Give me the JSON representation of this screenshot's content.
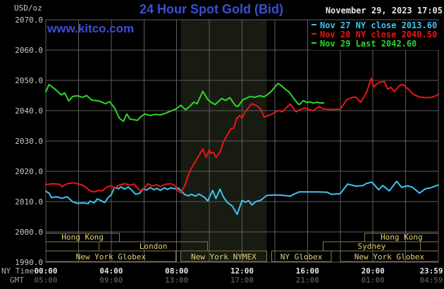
{
  "header": {
    "units_label": "USD/oz",
    "title": "24 Hour Spot Gold (Bid)",
    "datetime": "November 29, 2023 17:05",
    "watermark": "www.kitco.com"
  },
  "legend": {
    "rows": [
      {
        "key": "nov27",
        "text": "Nov 27 NY close 2013.60"
      },
      {
        "key": "nov28",
        "text": "Nov 28 NY close 2040.50"
      },
      {
        "key": "nov29",
        "text": "Nov 29 Last 2042.60"
      }
    ]
  },
  "axes": {
    "x_label_primary": "NY Time",
    "x_label_secondary": "GMT",
    "ny_times": [
      "00:00",
      "04:00",
      "08:00",
      "12:00",
      "16:00",
      "20:00",
      "23:59"
    ],
    "gmt_times": [
      "05:00",
      "09:00",
      "13:00",
      "17:00",
      "21:00",
      "01:00",
      "04:59"
    ],
    "y_ticks": [
      "2070.0",
      "2060.0",
      "2050.0",
      "2040.0",
      "2030.0",
      "2020.0",
      "2010.0",
      "2000.0",
      "1990.0"
    ],
    "y_min": 1990,
    "y_max": 2070
  },
  "sessions": [
    {
      "label": "Hong Kong",
      "row": 0,
      "h1": 0,
      "h2": 4.5
    },
    {
      "label": "Hong Kong",
      "row": 0,
      "h1": 19.5,
      "h2": 24
    },
    {
      "label": "London",
      "row": 1,
      "h1": 3.25,
      "h2": 9.9
    },
    {
      "label": "Sydney",
      "row": 1,
      "h1": 16.95,
      "h2": 22.9
    },
    {
      "label": "",
      "row": 1,
      "h1": 22.9,
      "h2": 24
    },
    {
      "label": "New York Globex",
      "row": 2,
      "h1": 0,
      "h2": 7.95
    },
    {
      "label": "New York NYMEX",
      "row": 2,
      "h1": 8.25,
      "h2": 13.5
    },
    {
      "label": "NY Globex",
      "row": 2,
      "h1": 13.8,
      "h2": 17.45
    },
    {
      "label": "New York Globex",
      "row": 2,
      "h1": 18.0,
      "h2": 24
    }
  ],
  "colors": {
    "background": "#000000",
    "grid": "#5e5e5e",
    "band": "#181b11",
    "title_blue": "#3c4ed2",
    "text_light": "#e4e4e4",
    "text_gray": "#b0b0b0",
    "tick_gray": "#c8c8c8",
    "gmt_dim": "#4c4c4c",
    "gmt_label": "#9a9a9a",
    "session_text": "#e2cf7d",
    "session_border": "#837b44",
    "nov27": "#3ec3f0",
    "nov28": "#ec1515",
    "nov29": "#2bd62b"
  },
  "chart_data": {
    "type": "line",
    "title": "24 Hour Spot Gold (Bid)",
    "ylabel": "USD/oz",
    "ylim": [
      1990,
      2070
    ],
    "x_axis_hours_ny": [
      0,
      24
    ],
    "grid": true,
    "legend_position": "top-right",
    "highlight_band_hours": [
      8.25,
      13.5
    ],
    "series": [
      {
        "key": "nov27",
        "name": "Nov 27 NY close",
        "close": 2013.6,
        "points": [
          [
            0,
            2013.4
          ],
          [
            0.2,
            2012.8
          ],
          [
            0.35,
            2011.3
          ],
          [
            0.65,
            2011.6
          ],
          [
            1.0,
            2011.1
          ],
          [
            1.3,
            2011.6
          ],
          [
            1.65,
            2009.9
          ],
          [
            1.95,
            2009.4
          ],
          [
            2.3,
            2009.6
          ],
          [
            2.6,
            2009.3
          ],
          [
            2.7,
            2010.2
          ],
          [
            2.95,
            2009.6
          ],
          [
            3.15,
            2010.9
          ],
          [
            3.35,
            2010.4
          ],
          [
            3.6,
            2009.7
          ],
          [
            3.8,
            2011.3
          ],
          [
            4.0,
            2012.2
          ],
          [
            4.2,
            2014.7
          ],
          [
            4.45,
            2014.2
          ],
          [
            4.6,
            2014.9
          ],
          [
            4.8,
            2014.1
          ],
          [
            5.05,
            2014.8
          ],
          [
            5.25,
            2013.8
          ],
          [
            5.5,
            2012.4
          ],
          [
            5.75,
            2012.8
          ],
          [
            5.95,
            2014.3
          ],
          [
            6.15,
            2013.8
          ],
          [
            6.4,
            2014.6
          ],
          [
            6.6,
            2013.9
          ],
          [
            6.8,
            2014.4
          ],
          [
            7.0,
            2013.7
          ],
          [
            7.25,
            2014.5
          ],
          [
            7.45,
            2014.0
          ],
          [
            7.65,
            2014.6
          ],
          [
            7.9,
            2014.2
          ],
          [
            8.1,
            2014.5
          ],
          [
            8.3,
            2013.4
          ],
          [
            8.5,
            2012.3
          ],
          [
            8.7,
            2011.9
          ],
          [
            8.9,
            2012.4
          ],
          [
            9.15,
            2011.8
          ],
          [
            9.35,
            2012.5
          ],
          [
            9.55,
            2011.9
          ],
          [
            9.7,
            2011.4
          ],
          [
            9.9,
            2010.2
          ],
          [
            10.2,
            2013.7
          ],
          [
            10.4,
            2011.0
          ],
          [
            10.65,
            2014.1
          ],
          [
            10.85,
            2011.6
          ],
          [
            11.1,
            2009.7
          ],
          [
            11.4,
            2008.5
          ],
          [
            11.7,
            2005.8
          ],
          [
            12.0,
            2010.4
          ],
          [
            12.2,
            2009.8
          ],
          [
            12.4,
            2010.3
          ],
          [
            12.6,
            2008.9
          ],
          [
            12.85,
            2010.0
          ],
          [
            13.15,
            2010.5
          ],
          [
            13.5,
            2012.0
          ],
          [
            14.0,
            2012.2
          ],
          [
            14.45,
            2012.1
          ],
          [
            14.95,
            2011.8
          ],
          [
            15.15,
            2012.4
          ],
          [
            15.5,
            2013.2
          ],
          [
            16.6,
            2013.2
          ],
          [
            17.2,
            2013.1
          ],
          [
            17.45,
            2012.4
          ],
          [
            18.0,
            2012.6
          ],
          [
            18.45,
            2015.8
          ],
          [
            18.95,
            2015.1
          ],
          [
            19.4,
            2015.3
          ],
          [
            19.6,
            2016.0
          ],
          [
            19.95,
            2016.4
          ],
          [
            20.35,
            2013.9
          ],
          [
            20.6,
            2015.3
          ],
          [
            21.0,
            2013.5
          ],
          [
            21.45,
            2016.7
          ],
          [
            21.75,
            2014.7
          ],
          [
            22.1,
            2015.2
          ],
          [
            22.4,
            2014.8
          ],
          [
            22.85,
            2012.8
          ],
          [
            23.2,
            2014.2
          ],
          [
            23.5,
            2014.5
          ],
          [
            23.8,
            2015.1
          ],
          [
            24,
            2015.5
          ]
        ]
      },
      {
        "key": "nov28",
        "name": "Nov 28 NY close",
        "close": 2040.5,
        "points": [
          [
            0,
            2015.6
          ],
          [
            0.45,
            2015.9
          ],
          [
            0.85,
            2015.7
          ],
          [
            1.0,
            2014.9
          ],
          [
            1.3,
            2015.9
          ],
          [
            1.7,
            2016.2
          ],
          [
            1.95,
            2015.9
          ],
          [
            2.3,
            2015.3
          ],
          [
            2.45,
            2014.7
          ],
          [
            2.7,
            2013.6
          ],
          [
            2.95,
            2013.2
          ],
          [
            3.25,
            2013.7
          ],
          [
            3.45,
            2013.5
          ],
          [
            3.75,
            2014.9
          ],
          [
            4.0,
            2015.2
          ],
          [
            4.2,
            2014.4
          ],
          [
            4.5,
            2015.5
          ],
          [
            4.85,
            2015.9
          ],
          [
            5.15,
            2015.4
          ],
          [
            5.4,
            2015.8
          ],
          [
            5.7,
            2013.9
          ],
          [
            5.9,
            2013.7
          ],
          [
            6.25,
            2015.9
          ],
          [
            6.5,
            2015.1
          ],
          [
            6.75,
            2015.6
          ],
          [
            7.0,
            2015.0
          ],
          [
            7.3,
            2015.7
          ],
          [
            7.65,
            2015.9
          ],
          [
            7.9,
            2015.3
          ],
          [
            8.1,
            2013.5
          ],
          [
            8.25,
            2012.9
          ],
          [
            8.4,
            2014.2
          ],
          [
            8.55,
            2016.0
          ],
          [
            8.7,
            2018.5
          ],
          [
            8.9,
            2021.0
          ],
          [
            9.25,
            2024.2
          ],
          [
            9.5,
            2026.5
          ],
          [
            9.6,
            2027.4
          ],
          [
            9.8,
            2024.6
          ],
          [
            10.0,
            2027.1
          ],
          [
            10.1,
            2025.9
          ],
          [
            10.25,
            2026.3
          ],
          [
            10.4,
            2024.6
          ],
          [
            10.65,
            2026.3
          ],
          [
            10.85,
            2029.6
          ],
          [
            11.05,
            2031.6
          ],
          [
            11.3,
            2033.9
          ],
          [
            11.5,
            2034.3
          ],
          [
            11.65,
            2037.2
          ],
          [
            11.85,
            2038.4
          ],
          [
            12.0,
            2037.6
          ],
          [
            12.2,
            2039.6
          ],
          [
            12.4,
            2041.1
          ],
          [
            12.6,
            2042.3
          ],
          [
            12.9,
            2041.6
          ],
          [
            13.15,
            2040.4
          ],
          [
            13.35,
            2037.9
          ],
          [
            13.55,
            2038.3
          ],
          [
            13.8,
            2038.8
          ],
          [
            14.2,
            2040.1
          ],
          [
            14.45,
            2039.6
          ],
          [
            14.75,
            2041.2
          ],
          [
            14.95,
            2042.2
          ],
          [
            15.3,
            2039.6
          ],
          [
            15.5,
            2040.2
          ],
          [
            15.8,
            2040.9
          ],
          [
            16.15,
            2040.3
          ],
          [
            16.35,
            2040.0
          ],
          [
            16.7,
            2041.4
          ],
          [
            16.95,
            2040.6
          ],
          [
            17.25,
            2040.4
          ],
          [
            17.65,
            2040.4
          ],
          [
            18.0,
            2040.5
          ],
          [
            18.4,
            2043.6
          ],
          [
            18.75,
            2044.4
          ],
          [
            18.95,
            2044.5
          ],
          [
            19.25,
            2042.8
          ],
          [
            19.6,
            2045.9
          ],
          [
            19.9,
            2050.7
          ],
          [
            20.05,
            2047.9
          ],
          [
            20.35,
            2049.3
          ],
          [
            20.7,
            2049.6
          ],
          [
            20.9,
            2047.1
          ],
          [
            21.1,
            2047.7
          ],
          [
            21.3,
            2046.3
          ],
          [
            21.65,
            2048.4
          ],
          [
            21.85,
            2048.6
          ],
          [
            22.2,
            2046.9
          ],
          [
            22.5,
            2045.3
          ],
          [
            22.85,
            2044.5
          ],
          [
            23.25,
            2044.3
          ],
          [
            23.6,
            2044.4
          ],
          [
            23.9,
            2045.0
          ],
          [
            24,
            2045.6
          ]
        ]
      },
      {
        "key": "nov29",
        "name": "Nov 29 Last",
        "last": 2042.6,
        "points": [
          [
            0,
            2046.2
          ],
          [
            0.2,
            2048.6
          ],
          [
            0.45,
            2047.6
          ],
          [
            0.65,
            2046.7
          ],
          [
            0.95,
            2045.2
          ],
          [
            1.15,
            2045.9
          ],
          [
            1.4,
            2043.2
          ],
          [
            1.65,
            2044.7
          ],
          [
            1.95,
            2044.9
          ],
          [
            2.25,
            2044.4
          ],
          [
            2.5,
            2045.0
          ],
          [
            2.8,
            2043.5
          ],
          [
            3.25,
            2043.2
          ],
          [
            3.65,
            2042.3
          ],
          [
            3.9,
            2043.0
          ],
          [
            4.2,
            2040.9
          ],
          [
            4.5,
            2037.5
          ],
          [
            4.75,
            2036.5
          ],
          [
            4.95,
            2038.9
          ],
          [
            5.15,
            2037.2
          ],
          [
            5.4,
            2037.0
          ],
          [
            5.6,
            2036.8
          ],
          [
            5.8,
            2038.0
          ],
          [
            6.05,
            2038.9
          ],
          [
            6.4,
            2038.4
          ],
          [
            6.7,
            2038.8
          ],
          [
            7.0,
            2038.6
          ],
          [
            7.3,
            2039.1
          ],
          [
            7.55,
            2039.7
          ],
          [
            7.95,
            2040.5
          ],
          [
            8.25,
            2041.8
          ],
          [
            8.55,
            2040.3
          ],
          [
            8.85,
            2041.7
          ],
          [
            9.05,
            2042.8
          ],
          [
            9.25,
            2042.3
          ],
          [
            9.6,
            2046.4
          ],
          [
            9.9,
            2043.7
          ],
          [
            10.1,
            2042.8
          ],
          [
            10.35,
            2042.0
          ],
          [
            10.55,
            2043.0
          ],
          [
            10.75,
            2044.0
          ],
          [
            11.0,
            2043.4
          ],
          [
            11.25,
            2044.3
          ],
          [
            11.6,
            2041.6
          ],
          [
            11.75,
            2041.4
          ],
          [
            12.05,
            2043.6
          ],
          [
            12.3,
            2044.2
          ],
          [
            12.5,
            2044.7
          ],
          [
            12.8,
            2044.4
          ],
          [
            13.05,
            2044.9
          ],
          [
            13.35,
            2044.6
          ],
          [
            13.55,
            2045.3
          ],
          [
            13.8,
            2046.5
          ],
          [
            14.0,
            2047.8
          ],
          [
            14.2,
            2049.0
          ],
          [
            14.45,
            2048.0
          ],
          [
            14.65,
            2047.0
          ],
          [
            14.85,
            2046.3
          ],
          [
            15.1,
            2044.5
          ],
          [
            15.4,
            2042.4
          ],
          [
            15.5,
            2042.0
          ],
          [
            15.75,
            2043.3
          ],
          [
            15.95,
            2042.7
          ],
          [
            16.15,
            2042.9
          ],
          [
            16.35,
            2042.5
          ],
          [
            16.6,
            2042.8
          ],
          [
            16.8,
            2042.5
          ],
          [
            17.0,
            2042.6
          ]
        ]
      }
    ]
  }
}
